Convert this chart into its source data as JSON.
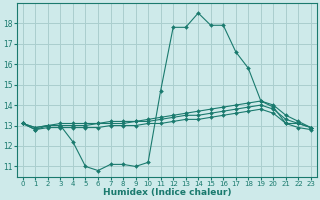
{
  "xlabel": "Humidex (Indice chaleur)",
  "x": [
    0,
    1,
    2,
    3,
    4,
    5,
    6,
    7,
    8,
    9,
    10,
    11,
    12,
    13,
    14,
    15,
    16,
    17,
    18,
    19,
    20,
    21,
    22,
    23
  ],
  "line_spiky": [
    13.1,
    12.8,
    13.0,
    13.0,
    12.2,
    11.0,
    10.8,
    11.1,
    11.1,
    11.0,
    11.2,
    14.7,
    17.8,
    17.8,
    18.5,
    17.9,
    17.9,
    16.6,
    15.8,
    14.2,
    13.9,
    13.1,
    13.1,
    12.9
  ],
  "line_upper": [
    13.1,
    12.9,
    13.0,
    13.1,
    13.1,
    13.1,
    13.1,
    13.2,
    13.2,
    13.2,
    13.3,
    13.4,
    13.5,
    13.6,
    13.7,
    13.8,
    13.9,
    14.0,
    14.1,
    14.2,
    14.0,
    13.5,
    13.2,
    12.9
  ],
  "line_mid": [
    13.1,
    12.9,
    13.0,
    13.0,
    13.0,
    13.0,
    13.1,
    13.1,
    13.1,
    13.2,
    13.2,
    13.3,
    13.4,
    13.5,
    13.5,
    13.6,
    13.7,
    13.8,
    13.9,
    14.0,
    13.8,
    13.3,
    13.1,
    12.9
  ],
  "line_lower": [
    13.1,
    12.8,
    12.9,
    12.9,
    12.9,
    12.9,
    12.9,
    13.0,
    13.0,
    13.0,
    13.1,
    13.1,
    13.2,
    13.3,
    13.3,
    13.4,
    13.5,
    13.6,
    13.7,
    13.8,
    13.6,
    13.1,
    12.9,
    12.8
  ],
  "line_color": "#1a7a6e",
  "bg_color": "#ceeaea",
  "grid_color": "#aacece",
  "ylim": [
    10.5,
    19.0
  ],
  "xlim": [
    -0.5,
    23.5
  ],
  "yticks": [
    11,
    12,
    13,
    14,
    15,
    16,
    17,
    18
  ],
  "xticks": [
    0,
    1,
    2,
    3,
    4,
    5,
    6,
    7,
    8,
    9,
    10,
    11,
    12,
    13,
    14,
    15,
    16,
    17,
    18,
    19,
    20,
    21,
    22,
    23
  ],
  "tick_fontsize": 5.5,
  "xlabel_fontsize": 6.5
}
